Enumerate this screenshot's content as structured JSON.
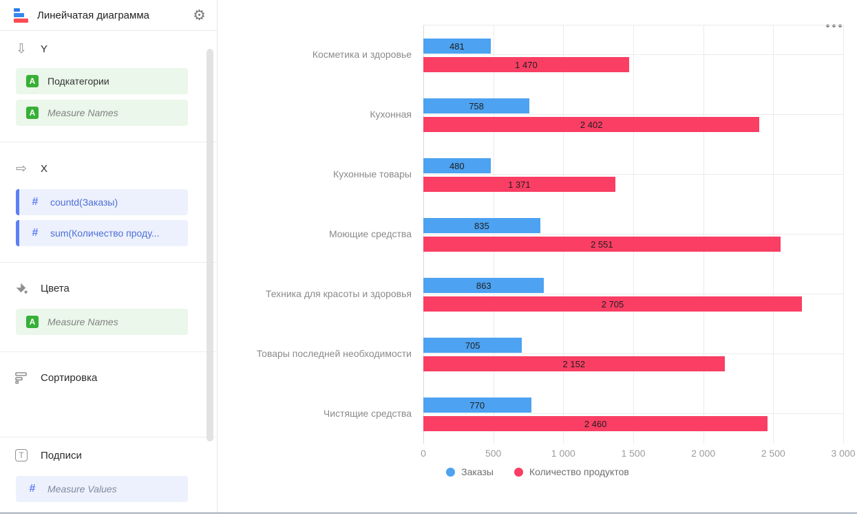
{
  "header": {
    "title": "Линейчатая диаграмма"
  },
  "sidebar": {
    "sections": [
      {
        "label": "Y",
        "icon": "arrow-down-icon",
        "items": [
          {
            "text": "Подкатегории",
            "kind": "dimension",
            "placeholder": false
          },
          {
            "text": "Measure Names",
            "kind": "dimension",
            "placeholder": true
          }
        ]
      },
      {
        "label": "X",
        "icon": "arrow-right-icon",
        "items": [
          {
            "text": "countd(Заказы)",
            "kind": "measure",
            "placeholder": false
          },
          {
            "text": "sum(Количество проду...",
            "kind": "measure",
            "placeholder": false
          }
        ]
      },
      {
        "label": "Цвета",
        "icon": "paint-bucket-icon",
        "items": [
          {
            "text": "Measure Names",
            "kind": "dimension",
            "placeholder": true
          }
        ]
      },
      {
        "label": "Сортировка",
        "icon": "sort-icon",
        "items": []
      },
      {
        "label": "Подписи",
        "icon": "text-icon",
        "items": [
          {
            "text": "Measure Values",
            "kind": "measure",
            "placeholder": true
          }
        ]
      }
    ]
  },
  "chart_data": {
    "type": "bar",
    "orientation": "horizontal",
    "title": "",
    "categories": [
      "Косметика и здоровье",
      "Кухонная",
      "Кухонные товары",
      "Моющие средства",
      "Техника для красоты и здоровья",
      "Товары последней необходимости",
      "Чистящие средства"
    ],
    "series": [
      {
        "name": "Заказы",
        "color": "#4DA2F1",
        "values": [
          481,
          758,
          480,
          835,
          863,
          705,
          770
        ]
      },
      {
        "name": "Количество продуктов",
        "color": "#FA3E64",
        "values": [
          1470,
          2402,
          1371,
          2551,
          2705,
          2152,
          2460
        ]
      }
    ],
    "xlim": [
      0,
      3000
    ],
    "xticks": [
      0,
      500,
      1000,
      1500,
      2000,
      2500,
      3000
    ],
    "grid": true,
    "legend_position": "bottom",
    "value_labels": "inside",
    "number_format": "space-thousands"
  },
  "colors": {
    "series_blue": "#4DA2F1",
    "series_red": "#FA3E64",
    "dimension_green": "#37B037",
    "measure_accent": "#5B7FF5",
    "pill_green_bg": "#EAF7EA",
    "pill_blue_bg": "#EDF1FD"
  }
}
